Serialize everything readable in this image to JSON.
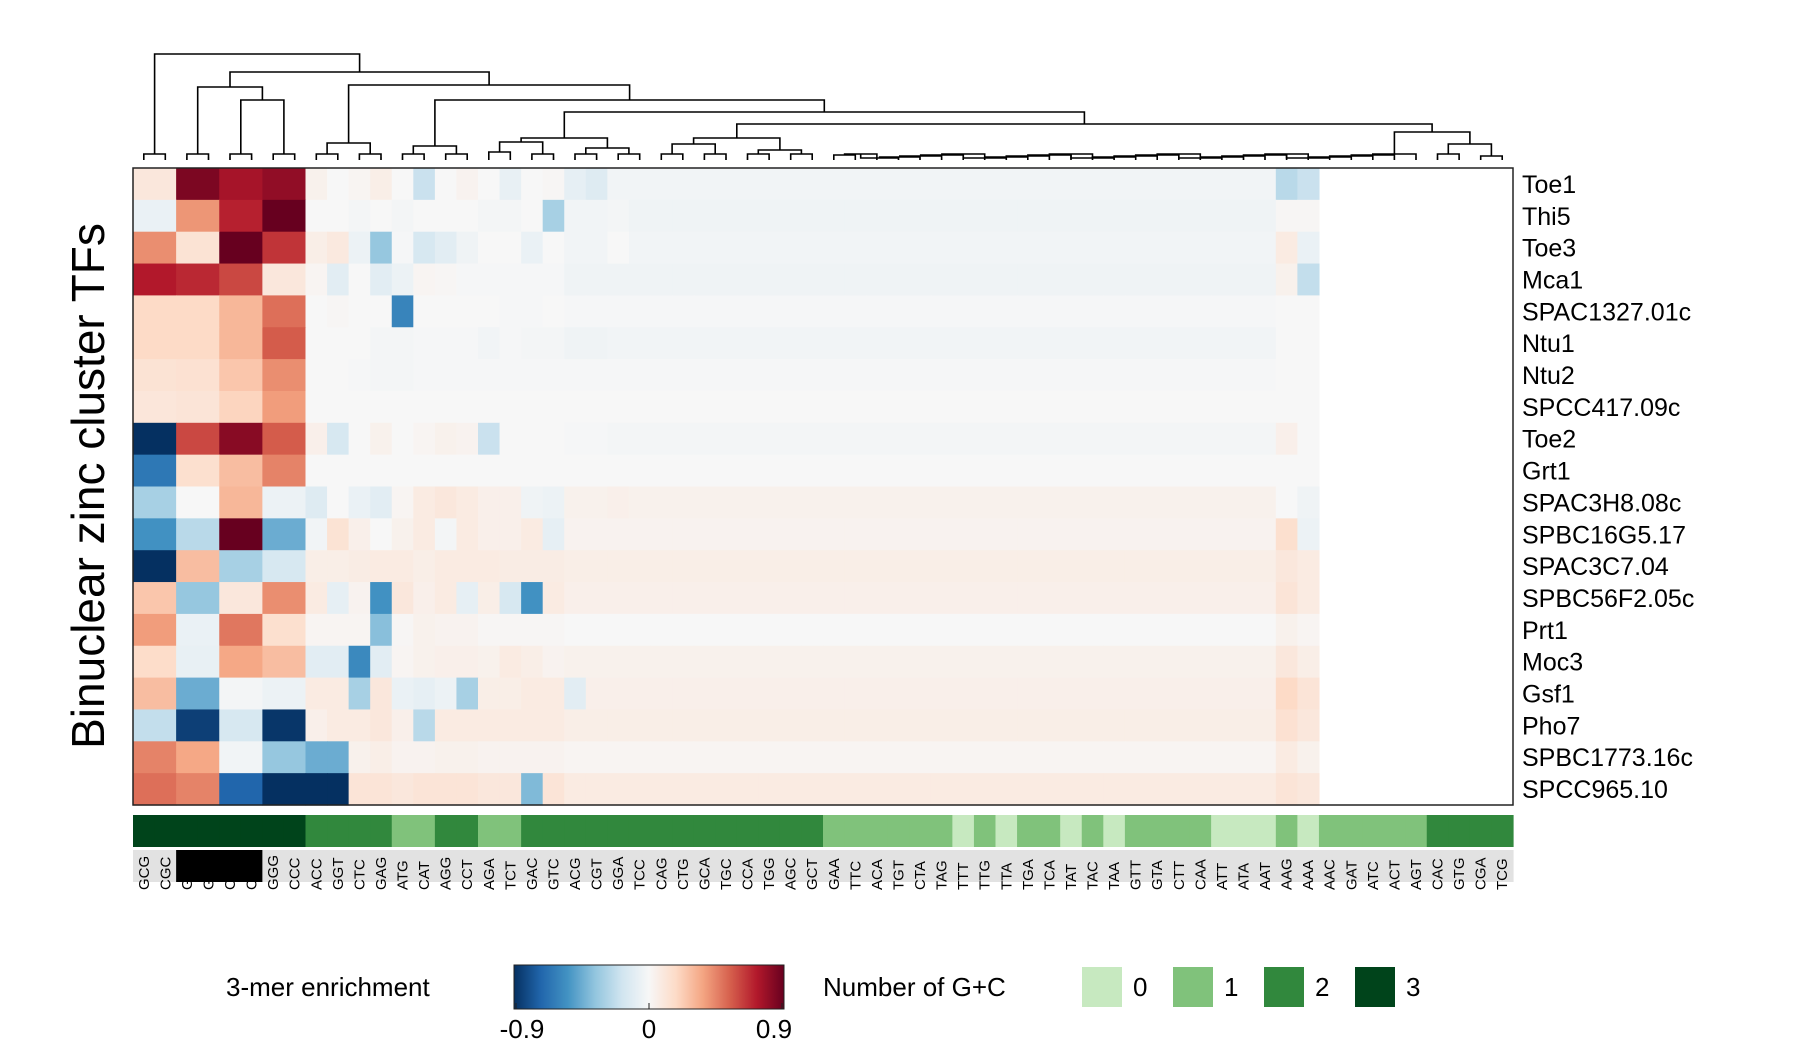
{
  "chart_data": {
    "type": "heatmap",
    "ylabel": "Binuclear zinc cluster TFs",
    "rows": [
      "Toe1",
      "Thi5",
      "Toe3",
      "Mca1",
      "SPAC1327.01c",
      "Ntu1",
      "Ntu2",
      "SPCC417.09c",
      "Toe2",
      "Grt1",
      "SPAC3H8.08c",
      "SPBC16G5.17",
      "SPAC3C7.04",
      "SPBC56F2.05c",
      "Prt1",
      "Moc3",
      "Gsf1",
      "Pho7",
      "SPBC1773.16c",
      "SPCC965.10"
    ],
    "columns": [
      "GCG",
      "CGC",
      "GGC",
      "GCC",
      "CCG",
      "CGG",
      "GGG",
      "CCC",
      "ACC",
      "GGT",
      "CTC",
      "GAG",
      "ATG",
      "CAT",
      "AGG",
      "CCT",
      "AGA",
      "TCT",
      "GAC",
      "GTC",
      "ACG",
      "CGT",
      "GGA",
      "TCC",
      "CAG",
      "CTG",
      "GCA",
      "TGC",
      "CCA",
      "TGG",
      "AGC",
      "GCT",
      "GAA",
      "TTC",
      "ACA",
      "TGT",
      "CTA",
      "TAG",
      "TTT",
      "TTG",
      "TTA",
      "TGA",
      "TCA",
      "TAT",
      "TAC",
      "TAA",
      "GTT",
      "GTA",
      "CTT",
      "CAA",
      "ATT",
      "ATA",
      "AAT",
      "AAG",
      "AAA",
      "AAC",
      "GAT",
      "ATC",
      "ACT",
      "AGT",
      "CAC",
      "GTG",
      "CGA",
      "TCG"
    ],
    "cells": [
      [
        0.1,
        0.85,
        0.75,
        0.8,
        0.04,
        0,
        0.02,
        0.06,
        0,
        -0.2,
        0,
        0.03,
        0,
        -0.07,
        0,
        0.01,
        -0.08,
        -0.12,
        -0.03,
        -0.03,
        -0.03,
        -0.03,
        -0.03,
        -0.03,
        -0.03,
        -0.03,
        -0.03,
        -0.03,
        -0.03,
        -0.03,
        -0.03,
        -0.03,
        -0.03,
        -0.03,
        -0.03,
        -0.03,
        -0.03,
        -0.25,
        -0.2
      ],
      [
        -0.06,
        0.4,
        0.7,
        0.95,
        0,
        0,
        -0.02,
        0,
        -0.02,
        0,
        0,
        0,
        -0.02,
        -0.02,
        0,
        -0.3,
        -0.03,
        -0.03,
        -0.02,
        -0.04,
        -0.04,
        -0.04,
        -0.04,
        -0.04,
        -0.04,
        -0.04,
        -0.04,
        -0.04,
        -0.04,
        -0.04,
        -0.04,
        -0.04,
        -0.04,
        -0.04,
        -0.04,
        -0.04,
        -0.04,
        0.01,
        0.01
      ],
      [
        0.42,
        0.13,
        0.92,
        0.65,
        0.06,
        0.09,
        -0.05,
        -0.35,
        -0.01,
        -0.15,
        -0.1,
        -0.04,
        0,
        0,
        -0.06,
        0,
        -0.03,
        -0.03,
        0,
        -0.03,
        -0.03,
        -0.03,
        -0.03,
        -0.03,
        -0.03,
        -0.03,
        -0.03,
        -0.03,
        -0.03,
        -0.03,
        -0.03,
        -0.03,
        -0.03,
        -0.03,
        -0.03,
        -0.03,
        -0.03,
        0.08,
        -0.06
      ],
      [
        0.72,
        0.68,
        0.6,
        0.1,
        0.02,
        -0.1,
        0,
        -0.1,
        -0.05,
        0.02,
        0.01,
        -0.01,
        -0.01,
        -0.01,
        -0.01,
        -0.01,
        -0.04,
        -0.04,
        -0.04,
        -0.04,
        -0.04,
        -0.04,
        -0.04,
        -0.04,
        -0.04,
        -0.04,
        -0.04,
        -0.04,
        -0.04,
        -0.04,
        -0.04,
        -0.04,
        -0.04,
        -0.04,
        -0.04,
        -0.04,
        -0.04,
        0.04,
        -0.22
      ],
      [
        0.18,
        0.18,
        0.3,
        0.5,
        0,
        0.01,
        0,
        0,
        -0.6,
        0,
        0,
        0,
        0,
        -0.01,
        -0.01,
        0,
        -0.01,
        -0.01,
        -0.01,
        -0.01,
        -0.01,
        -0.01,
        -0.01,
        -0.01,
        -0.01,
        -0.01,
        -0.01,
        -0.01,
        -0.01,
        -0.01,
        -0.01,
        -0.01,
        -0.01,
        -0.01,
        -0.01,
        -0.01,
        -0.01,
        0,
        0
      ],
      [
        0.18,
        0.18,
        0.3,
        0.55,
        0,
        0,
        0,
        -0.02,
        -0.02,
        -0.01,
        -0.01,
        -0.01,
        -0.03,
        -0.01,
        -0.02,
        -0.02,
        -0.04,
        -0.04,
        -0.03,
        -0.03,
        -0.03,
        -0.03,
        -0.03,
        -0.03,
        -0.03,
        -0.03,
        -0.03,
        -0.03,
        -0.03,
        -0.03,
        -0.03,
        -0.03,
        -0.03,
        -0.03,
        -0.03,
        -0.03,
        -0.03,
        0,
        0
      ],
      [
        0.13,
        0.14,
        0.25,
        0.42,
        0,
        0,
        -0.01,
        -0.02,
        -0.02,
        -0.01,
        -0.01,
        -0.01,
        -0.01,
        -0.01,
        -0.01,
        -0.01,
        -0.01,
        -0.01,
        -0.01,
        -0.01,
        -0.01,
        -0.01,
        -0.01,
        -0.01,
        -0.01,
        -0.01,
        -0.01,
        -0.01,
        -0.01,
        -0.01,
        -0.01,
        -0.01,
        -0.01,
        -0.01,
        -0.01,
        -0.01,
        -0.01,
        0,
        0
      ],
      [
        0.11,
        0.12,
        0.2,
        0.38,
        0,
        0,
        0,
        0,
        0,
        0,
        0,
        0,
        0,
        0,
        0,
        0,
        0,
        0,
        0,
        0,
        0,
        0,
        0,
        0,
        0,
        0,
        0,
        0,
        0,
        0,
        0,
        0,
        0,
        0,
        0,
        0,
        0,
        0,
        0
      ],
      [
        -0.95,
        0.6,
        0.82,
        0.55,
        0.05,
        -0.15,
        0,
        0.04,
        0,
        0.02,
        0.04,
        0.03,
        -0.2,
        0,
        0,
        0,
        -0.01,
        -0.01,
        -0.02,
        -0.02,
        -0.02,
        -0.02,
        -0.02,
        -0.02,
        -0.02,
        -0.02,
        -0.02,
        -0.02,
        -0.02,
        -0.02,
        -0.02,
        -0.02,
        -0.02,
        -0.02,
        -0.02,
        -0.02,
        -0.02,
        0.05,
        0
      ],
      [
        -0.65,
        0.15,
        0.28,
        0.45,
        0,
        0,
        0,
        0,
        0,
        0,
        0,
        0,
        0,
        0,
        0,
        0,
        0,
        0,
        0,
        0,
        0,
        0,
        0,
        0,
        0,
        0,
        0,
        0,
        0,
        0,
        0,
        0,
        0,
        0,
        0,
        0,
        0,
        0,
        0
      ],
      [
        -0.3,
        0,
        0.3,
        -0.05,
        -0.12,
        0,
        -0.06,
        -0.1,
        0.02,
        0.08,
        0.1,
        0.08,
        0.05,
        0.05,
        -0.04,
        -0.05,
        0.04,
        0.04,
        0.05,
        0.04,
        0.04,
        0.04,
        0.04,
        0.04,
        0.04,
        0.04,
        0.04,
        0.04,
        0.04,
        0.04,
        0.04,
        0.04,
        0.04,
        0.04,
        0.04,
        0.04,
        0.04,
        0,
        -0.04
      ],
      [
        -0.55,
        -0.25,
        0.98,
        -0.45,
        -0.03,
        0.13,
        0.05,
        0,
        0.04,
        0.08,
        -0.02,
        0.08,
        0.05,
        0.05,
        0.08,
        -0.08,
        0.03,
        0.03,
        0.03,
        0.03,
        0.03,
        0.03,
        0.03,
        0.03,
        0.03,
        0.03,
        0.03,
        0.03,
        0.03,
        0.03,
        0.03,
        0.03,
        0.03,
        0.03,
        0.03,
        0.03,
        0.03,
        0.15,
        -0.05
      ],
      [
        -0.98,
        0.28,
        -0.3,
        -0.15,
        0.06,
        0.06,
        0.07,
        0.08,
        0.08,
        0.06,
        0.08,
        0.08,
        0.08,
        0.07,
        0.07,
        0.07,
        0.06,
        0.06,
        0.06,
        0.06,
        0.06,
        0.06,
        0.06,
        0.06,
        0.06,
        0.06,
        0.06,
        0.06,
        0.06,
        0.06,
        0.06,
        0.06,
        0.06,
        0.06,
        0.06,
        0.06,
        0.06,
        0.1,
        0.08
      ],
      [
        0.25,
        -0.35,
        0.1,
        0.42,
        0.08,
        -0.08,
        0.03,
        -0.55,
        0.1,
        0.05,
        0.08,
        -0.08,
        0.06,
        -0.15,
        -0.55,
        0.08,
        0.05,
        0.05,
        0.05,
        0.05,
        0.05,
        0.05,
        0.05,
        0.05,
        0.05,
        0.05,
        0.05,
        0.05,
        0.05,
        0.05,
        0.05,
        0.05,
        0.05,
        0.05,
        0.05,
        0.05,
        0.05,
        0.12,
        0.08
      ],
      [
        0.38,
        -0.06,
        0.48,
        0.15,
        0.02,
        0.02,
        0.02,
        -0.38,
        0.01,
        0.04,
        0.03,
        0.03,
        0.01,
        0.01,
        0.01,
        0.01,
        0,
        0,
        0,
        0,
        0,
        0,
        0,
        0,
        0,
        0,
        0,
        0,
        0,
        0,
        0,
        0,
        0,
        0,
        0,
        0,
        0,
        0.04,
        0.02
      ],
      [
        0.17,
        -0.07,
        0.35,
        0.28,
        -0.1,
        -0.1,
        -0.58,
        -0.1,
        0.02,
        0.04,
        0.05,
        0.05,
        0.04,
        0.08,
        0.06,
        0.03,
        0.04,
        0.04,
        0.04,
        0.04,
        0.04,
        0.04,
        0.04,
        0.04,
        0.04,
        0.04,
        0.04,
        0.04,
        0.04,
        0.04,
        0.04,
        0.04,
        0.04,
        0.04,
        0.04,
        0.04,
        0.04,
        0.1,
        0.06
      ],
      [
        0.28,
        -0.45,
        -0.02,
        -0.05,
        0.08,
        0.08,
        -0.3,
        0.1,
        -0.06,
        -0.08,
        -0.05,
        -0.3,
        0.06,
        0.06,
        0.08,
        0.08,
        -0.1,
        0.05,
        0.05,
        0.05,
        0.05,
        0.05,
        0.05,
        0.05,
        0.05,
        0.05,
        0.05,
        0.05,
        0.05,
        0.05,
        0.05,
        0.05,
        0.05,
        0.05,
        0.05,
        0.05,
        0.05,
        0.18,
        0.12
      ],
      [
        -0.22,
        -0.85,
        -0.15,
        -0.88,
        0.05,
        0.08,
        0.08,
        0.1,
        0.05,
        -0.25,
        0.08,
        0.08,
        0.08,
        0.08,
        0.08,
        0.08,
        0.06,
        0.06,
        0.06,
        0.06,
        0.06,
        0.06,
        0.06,
        0.06,
        0.06,
        0.06,
        0.06,
        0.06,
        0.06,
        0.06,
        0.06,
        0.06,
        0.06,
        0.06,
        0.06,
        0.06,
        0.06,
        0.14,
        0.1
      ],
      [
        0.45,
        0.35,
        -0.03,
        -0.35,
        -0.45,
        -0.45,
        0.04,
        0.06,
        0.03,
        0.03,
        0.04,
        0.04,
        0.03,
        0.03,
        0.03,
        0.03,
        0.02,
        0.02,
        0.02,
        0.02,
        0.02,
        0.02,
        0.02,
        0.02,
        0.02,
        0.02,
        0.02,
        0.02,
        0.02,
        0.02,
        0.02,
        0.02,
        0.02,
        0.02,
        0.02,
        0.02,
        0.02,
        0.08,
        0.04
      ],
      [
        0.5,
        0.45,
        -0.72,
        -0.92,
        -0.92,
        -0.92,
        0.12,
        0.12,
        0.1,
        0.12,
        0.12,
        0.12,
        0.1,
        0.1,
        -0.4,
        0.12,
        0.08,
        0.08,
        0.08,
        0.08,
        0.08,
        0.08,
        0.08,
        0.08,
        0.08,
        0.08,
        0.08,
        0.08,
        0.08,
        0.08,
        0.08,
        0.08,
        0.08,
        0.08,
        0.08,
        0.08,
        0.08,
        0.12,
        0.1
      ]
    ],
    "col_spans": [
      2,
      2,
      2,
      2,
      1,
      1,
      1,
      1,
      1,
      1,
      1,
      1,
      1,
      1,
      1,
      1,
      1,
      1,
      1,
      1,
      1,
      1,
      2,
      1,
      2,
      1,
      1,
      1,
      1,
      2,
      4,
      3,
      1,
      1,
      4,
      2,
      1,
      1,
      1
    ],
    "gc_counts": [
      3,
      3,
      3,
      3,
      3,
      3,
      3,
      3,
      2,
      2,
      2,
      2,
      1,
      1,
      2,
      2,
      1,
      1,
      2,
      2,
      2,
      2,
      2,
      2,
      2,
      2,
      2,
      2,
      2,
      2,
      2,
      2,
      1,
      1,
      1,
      1,
      1,
      1,
      0,
      1,
      0,
      1,
      1,
      0,
      1,
      0,
      1,
      1,
      1,
      1,
      0,
      0,
      0,
      1,
      0,
      1,
      1,
      1,
      1,
      1,
      2,
      2,
      2,
      2
    ],
    "cpg_track": [
      0,
      0,
      1,
      1,
      1,
      1,
      0,
      0,
      0,
      0,
      0,
      0,
      0,
      0,
      0,
      0,
      0,
      0,
      0,
      0,
      0,
      0,
      0,
      0,
      0,
      0,
      0,
      0,
      0,
      0,
      0,
      0,
      0,
      0,
      0,
      0,
      0,
      0,
      0,
      0,
      0,
      0,
      0,
      0,
      0,
      0,
      0,
      0,
      0,
      0,
      0,
      0,
      0,
      0,
      0,
      0,
      0,
      0,
      0,
      0,
      0,
      0,
      0,
      0
    ],
    "colorbar": {
      "title": "3-mer enrichment",
      "ticks": [
        "-0.9",
        "0",
        "0.9"
      ],
      "min": -0.9,
      "max": 0.9,
      "colors": [
        "#053061",
        "#2166ac",
        "#4393c3",
        "#92c5de",
        "#d1e5f0",
        "#f7f7f7",
        "#fddbc7",
        "#f4a582",
        "#d6604d",
        "#b2182b",
        "#67001f"
      ]
    },
    "gc_legend": {
      "title": "Number of G+C",
      "entries": [
        {
          "label": "0",
          "color": "#c7e9c0"
        },
        {
          "label": "1",
          "color": "#80c27b"
        },
        {
          "label": "2",
          "color": "#31883d"
        },
        {
          "label": "3",
          "color": "#00441b"
        }
      ]
    },
    "cpg_colors": {
      "on": "#000000",
      "off": "#e2e2e2"
    }
  }
}
